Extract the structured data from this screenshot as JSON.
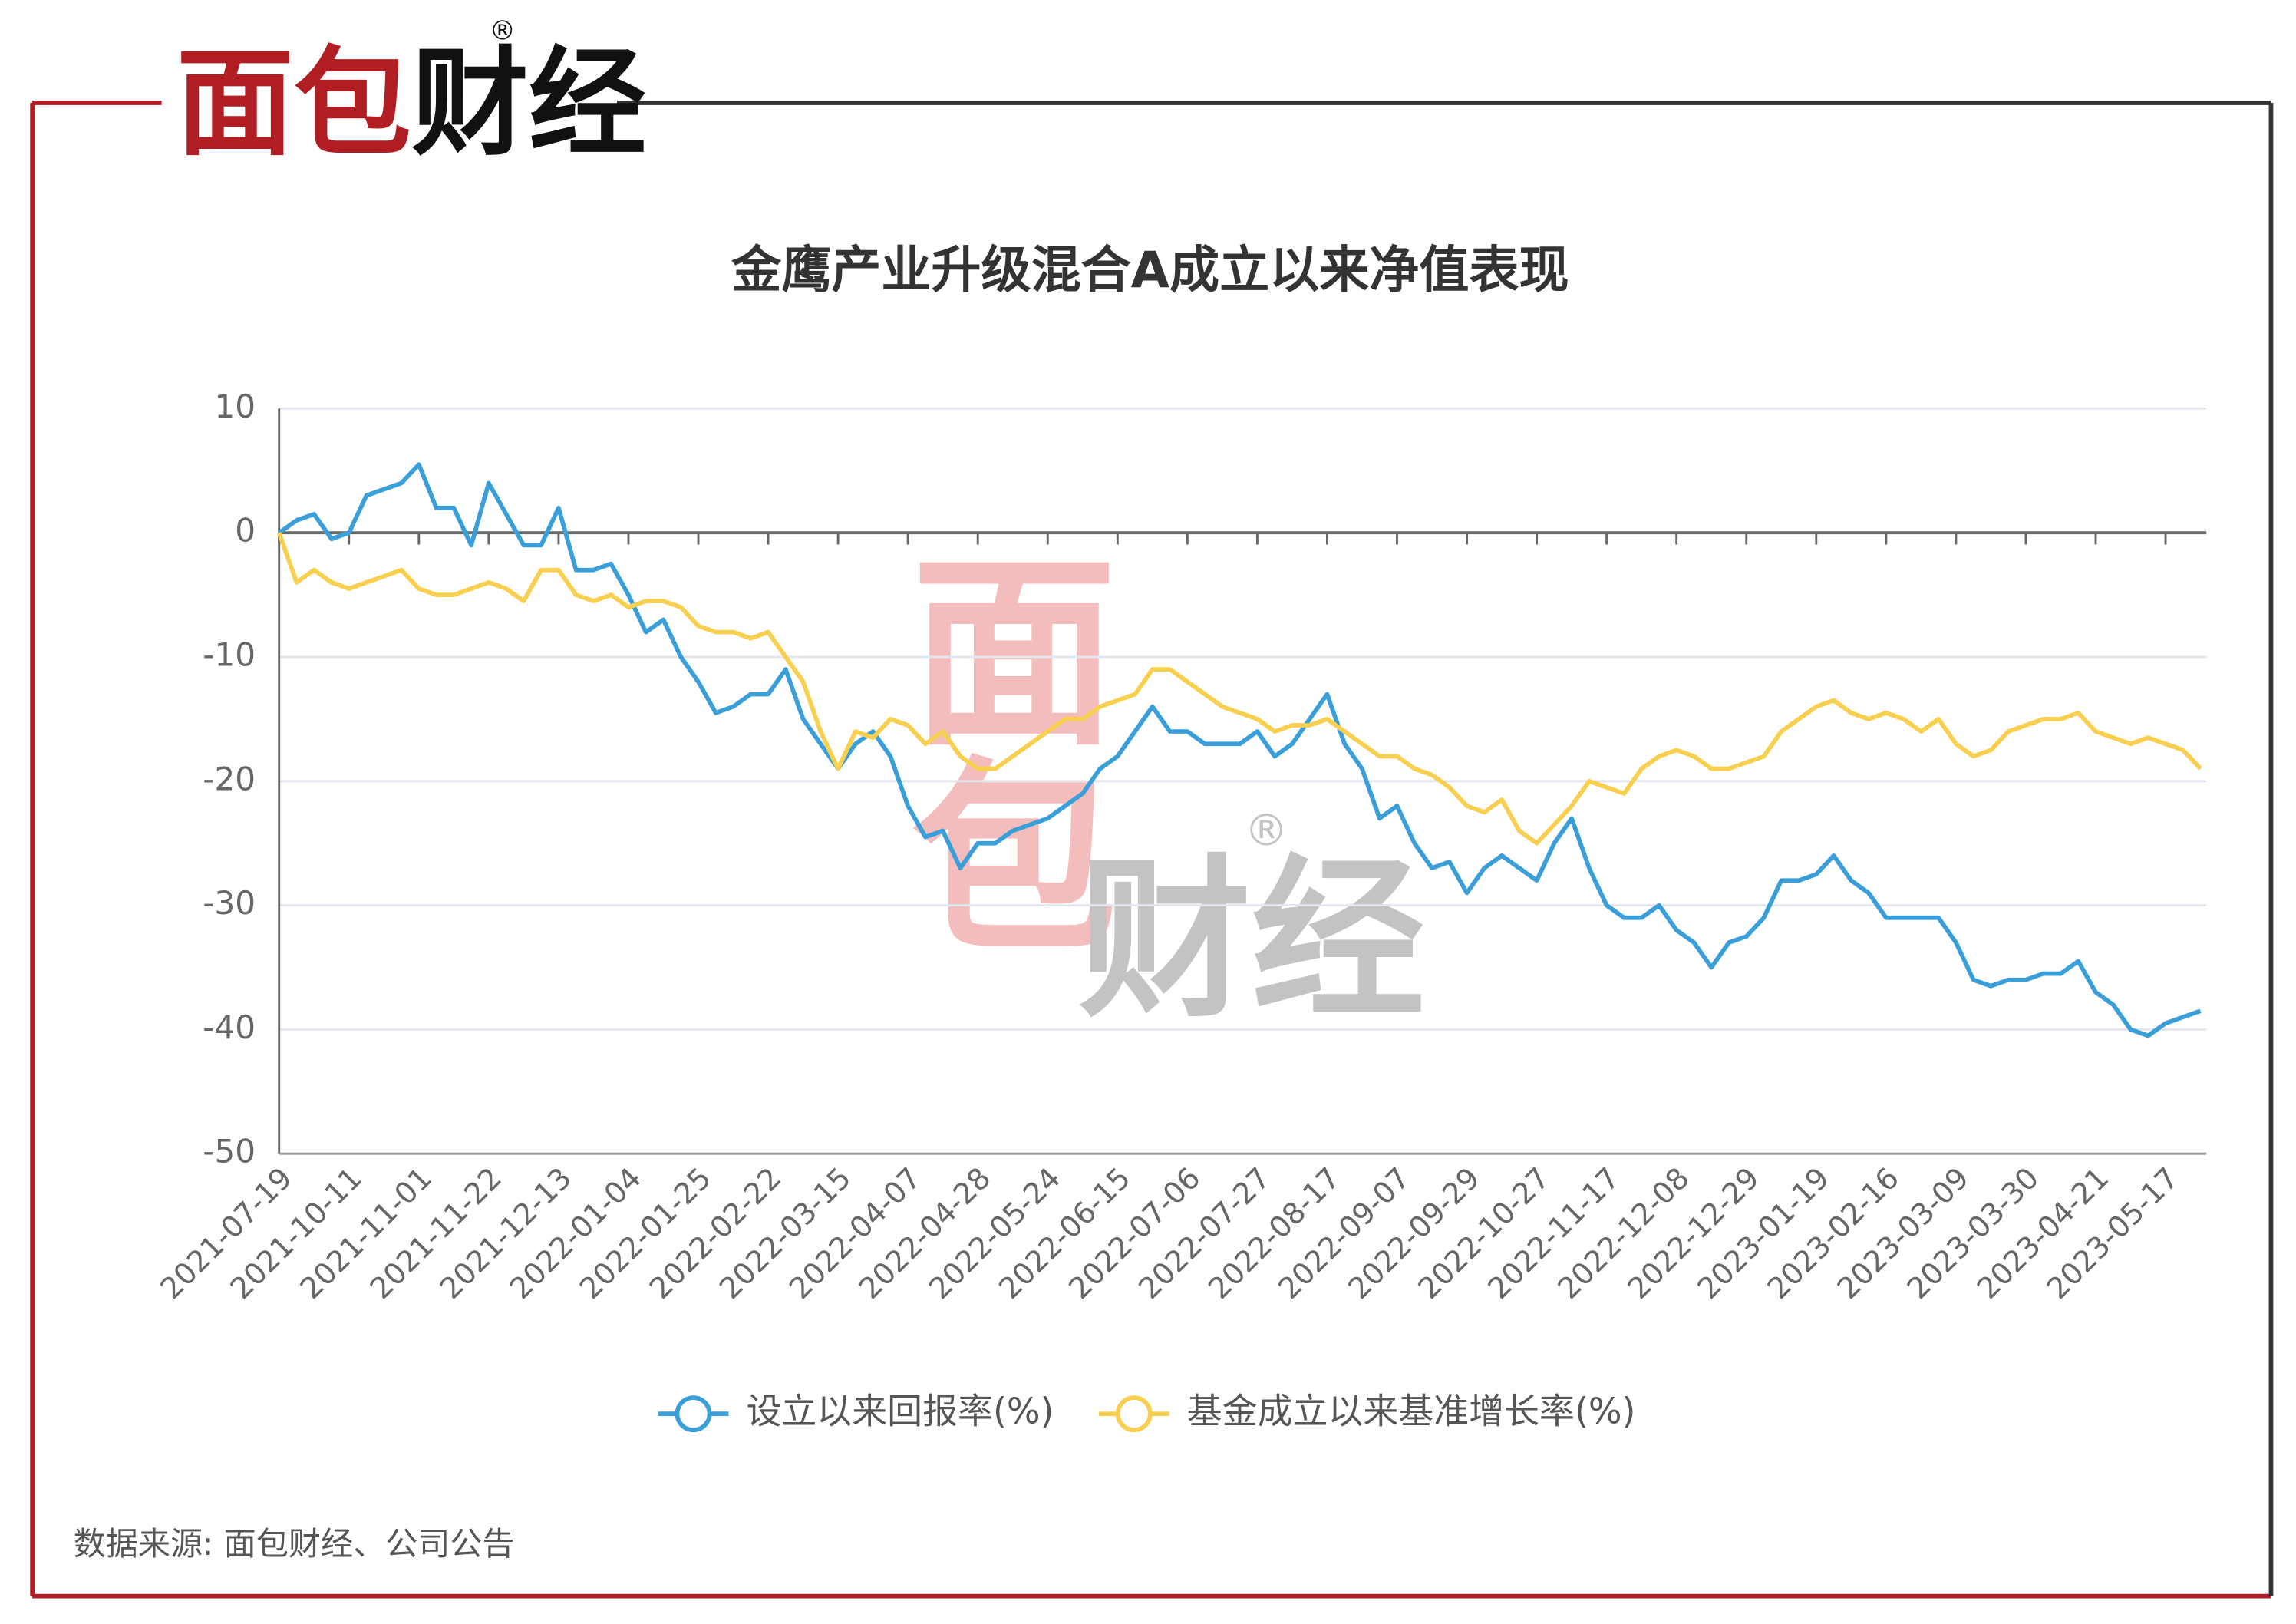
{
  "logo": [
    "面包",
    "财经"
  ],
  "logo_mark": "®",
  "source": "数据来源: 面包财经、公司公告",
  "chart_data": {
    "type": "line",
    "title": "金鹰产业升级混合A成立以来净值表现",
    "categories": [
      "2021-07-19",
      null,
      null,
      null,
      "2021-10-11",
      null,
      null,
      null,
      "2021-11-01",
      null,
      null,
      null,
      "2021-11-22",
      null,
      null,
      null,
      "2021-12-13",
      null,
      null,
      null,
      "2022-01-04",
      null,
      null,
      null,
      "2022-01-25",
      null,
      null,
      null,
      "2022-02-22",
      null,
      null,
      null,
      "2022-03-15",
      null,
      null,
      null,
      "2022-04-07",
      null,
      null,
      null,
      "2022-04-28",
      null,
      null,
      null,
      "2022-05-24",
      null,
      null,
      null,
      "2022-06-15",
      null,
      null,
      null,
      "2022-07-06",
      null,
      null,
      null,
      "2022-07-27",
      null,
      null,
      null,
      "2022-08-17",
      null,
      null,
      null,
      "2022-09-07",
      null,
      null,
      null,
      "2022-09-29",
      null,
      null,
      null,
      "2022-10-27",
      null,
      null,
      null,
      "2022-11-17",
      null,
      null,
      null,
      "2022-12-08",
      null,
      null,
      null,
      "2022-12-29",
      null,
      null,
      null,
      "2023-01-19",
      null,
      null,
      null,
      "2023-02-16",
      null,
      null,
      null,
      "2023-03-09",
      null,
      null,
      null,
      "2023-03-30",
      null,
      null,
      null,
      "2023-04-21",
      null,
      null,
      null,
      "2023-05-17",
      null,
      null
    ],
    "series": [
      {
        "name": "设立以来回报率(%)",
        "color": "#3a9fd9",
        "values": [
          0,
          1,
          1.5,
          -0.5,
          0,
          3,
          3.5,
          4,
          5.5,
          2,
          2,
          -1,
          4,
          1.5,
          -1,
          -1,
          2,
          -3,
          -3,
          -2.5,
          -5,
          -8,
          -7,
          -10,
          -12,
          -14.5,
          -14,
          -13,
          -13,
          -11,
          -15,
          -17,
          -19,
          -17,
          -16,
          -18,
          -22,
          -24.5,
          -24,
          -27,
          -25,
          -25,
          -24,
          -23.5,
          -23,
          -22,
          -21,
          -19,
          -18,
          -16,
          -14,
          -16,
          -16,
          -17,
          -17,
          -17,
          -16,
          -18,
          -17,
          -15,
          -13,
          -17,
          -19,
          -23,
          -22,
          -25,
          -27,
          -26.5,
          -29,
          -27,
          -26,
          -27,
          -28,
          -25,
          -23,
          -27,
          -30,
          -31,
          -31,
          -30,
          -32,
          -33,
          -35,
          -33,
          -32.5,
          -31,
          -28,
          -28,
          -27.5,
          -26,
          -28,
          -29,
          -31,
          -31,
          -31,
          -31,
          -33,
          -36,
          -36.5,
          -36,
          -36,
          -35.5,
          -35.5,
          -34.5,
          -37,
          -38,
          -40,
          -40.5,
          -39.5,
          -39,
          -38.5
        ]
      },
      {
        "name": "基金成立以来基准增长率(%)",
        "color": "#f9cf4f",
        "values": [
          0,
          -4,
          -3,
          -4,
          -4.5,
          -4,
          -3.5,
          -3,
          -4.5,
          -5,
          -5,
          -4.5,
          -4,
          -4.5,
          -5.5,
          -3,
          -3,
          -5,
          -5.5,
          -5,
          -6,
          -5.5,
          -5.5,
          -6,
          -7.5,
          -8,
          -8,
          -8.5,
          -8,
          -10,
          -12,
          -16,
          -19,
          -16,
          -16.5,
          -15,
          -15.5,
          -17,
          -16,
          -18,
          -19,
          -19,
          -18,
          -17,
          -16,
          -15,
          -15,
          -14,
          -13.5,
          -13,
          -11,
          -11,
          -12,
          -13,
          -14,
          -14.5,
          -15,
          -16,
          -15.5,
          -15.5,
          -15,
          -16,
          -17,
          -18,
          -18,
          -19,
          -19.5,
          -20.5,
          -22,
          -22.5,
          -21.5,
          -24,
          -25,
          -23.5,
          -22,
          -20,
          -20.5,
          -21,
          -19,
          -18,
          -17.5,
          -18,
          -19,
          -19,
          -18.5,
          -18,
          -16,
          -15,
          -14,
          -13.5,
          -14.5,
          -15,
          -14.5,
          -15,
          -16,
          -15,
          -17,
          -18,
          -17.5,
          -16,
          -15.5,
          -15,
          -15,
          -14.5,
          -16,
          -16.5,
          -17,
          -16.5,
          -17,
          -17.5,
          -19
        ]
      }
    ],
    "ylim": [
      -50,
      10
    ],
    "yticks": [
      -50,
      -40,
      -30,
      -20,
      -10,
      0,
      10
    ],
    "grid": true
  }
}
